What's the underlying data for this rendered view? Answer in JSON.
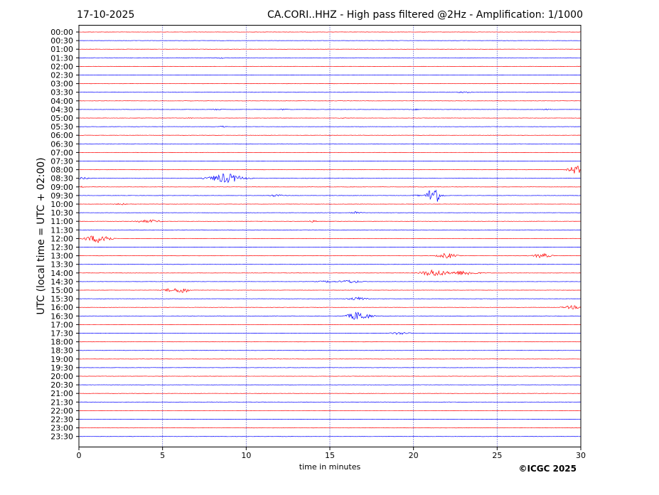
{
  "header": {
    "date": "17-10-2025",
    "title": "CA.CORI..HHZ - High pass filtered @2Hz - Amplification: 1/1000"
  },
  "footer": {
    "copyright": "©ICGC 2025"
  },
  "colors": {
    "red": "#ff0000",
    "blue": "#0000ff",
    "grid": "#0000aa"
  },
  "chart_data": {
    "type": "line",
    "xlabel": "time in minutes",
    "ylabel": "UTC (local time = UTC + 02:00)",
    "xlim": [
      0,
      30
    ],
    "x_ticks": [
      0,
      5,
      10,
      15,
      20,
      25,
      30
    ],
    "y_ticks": [
      "00:00",
      "00:30",
      "01:00",
      "01:30",
      "02:00",
      "02:30",
      "03:00",
      "03:30",
      "04:00",
      "04:30",
      "05:00",
      "05:30",
      "06:00",
      "06:30",
      "07:00",
      "07:30",
      "08:00",
      "08:30",
      "09:00",
      "09:30",
      "10:00",
      "10:30",
      "11:00",
      "11:30",
      "12:00",
      "12:30",
      "13:00",
      "13:30",
      "14:00",
      "14:30",
      "15:00",
      "15:30",
      "16:00",
      "16:30",
      "17:00",
      "17:30",
      "18:00",
      "18:30",
      "19:00",
      "19:30",
      "20:00",
      "20:30",
      "21:00",
      "21:30",
      "22:00",
      "22:30",
      "23:00",
      "23:30"
    ],
    "grid": "vertical dotted",
    "trace_colors": "alternating red (full hour) / blue (half hour)",
    "events": [
      {
        "row": "01:30",
        "minute": 8.5,
        "amplitude": 0.15,
        "duration": 0.6
      },
      {
        "row": "03:30",
        "minute": 23.0,
        "amplitude": 0.1,
        "duration": 1.5
      },
      {
        "row": "04:30",
        "minute": 8.3,
        "amplitude": 0.12,
        "duration": 0.6
      },
      {
        "row": "04:30",
        "minute": 12.2,
        "amplitude": 0.12,
        "duration": 0.6
      },
      {
        "row": "04:30",
        "minute": 20.1,
        "amplitude": 0.12,
        "duration": 0.6
      },
      {
        "row": "04:30",
        "minute": 28.0,
        "amplitude": 0.1,
        "duration": 0.6
      },
      {
        "row": "05:00",
        "minute": 6.6,
        "amplitude": 0.08,
        "duration": 0.5
      },
      {
        "row": "05:00",
        "minute": 15.8,
        "amplitude": 0.08,
        "duration": 0.5
      },
      {
        "row": "05:30",
        "minute": 8.6,
        "amplitude": 0.15,
        "duration": 0.4
      },
      {
        "row": "08:00",
        "minute": 29.7,
        "amplitude": 1.0,
        "duration": 0.8
      },
      {
        "row": "08:30",
        "minute": 0.2,
        "amplitude": 0.3,
        "duration": 0.8
      },
      {
        "row": "08:30",
        "minute": 8.8,
        "amplitude": 1.1,
        "duration": 1.8
      },
      {
        "row": "09:00",
        "minute": 0.2,
        "amplitude": 0.15,
        "duration": 0.3
      },
      {
        "row": "09:30",
        "minute": 11.8,
        "amplitude": 0.25,
        "duration": 0.8
      },
      {
        "row": "09:30",
        "minute": 20.2,
        "amplitude": 0.15,
        "duration": 0.4
      },
      {
        "row": "09:30",
        "minute": 21.2,
        "amplitude": 2.4,
        "duration": 0.7
      },
      {
        "row": "10:00",
        "minute": 2.5,
        "amplitude": 0.2,
        "duration": 0.6
      },
      {
        "row": "10:30",
        "minute": 16.5,
        "amplitude": 0.3,
        "duration": 0.6
      },
      {
        "row": "11:00",
        "minute": 3.8,
        "amplitude": 0.25,
        "duration": 1.2
      },
      {
        "row": "11:00",
        "minute": 4.5,
        "amplitude": 0.25,
        "duration": 0.8
      },
      {
        "row": "11:00",
        "minute": 14.0,
        "amplitude": 0.2,
        "duration": 0.5
      },
      {
        "row": "12:00",
        "minute": 1.0,
        "amplitude": 0.7,
        "duration": 1.4
      },
      {
        "row": "12:00",
        "minute": 1.5,
        "amplitude": 0.6,
        "duration": 0.8
      },
      {
        "row": "13:00",
        "minute": 22.0,
        "amplitude": 0.6,
        "duration": 1.0
      },
      {
        "row": "13:00",
        "minute": 27.7,
        "amplitude": 0.5,
        "duration": 1.0
      },
      {
        "row": "14:00",
        "minute": 21.2,
        "amplitude": 0.8,
        "duration": 1.4
      },
      {
        "row": "14:00",
        "minute": 23.0,
        "amplitude": 0.5,
        "duration": 1.6
      },
      {
        "row": "14:30",
        "minute": 14.8,
        "amplitude": 0.2,
        "duration": 1.0
      },
      {
        "row": "14:30",
        "minute": 16.2,
        "amplitude": 0.35,
        "duration": 1.2
      },
      {
        "row": "15:00",
        "minute": 5.5,
        "amplitude": 0.4,
        "duration": 0.8
      },
      {
        "row": "15:00",
        "minute": 6.2,
        "amplitude": 0.8,
        "duration": 0.6
      },
      {
        "row": "15:30",
        "minute": 16.5,
        "amplitude": 0.3,
        "duration": 0.8
      },
      {
        "row": "15:30",
        "minute": 17.0,
        "amplitude": 0.3,
        "duration": 0.6
      },
      {
        "row": "16:00",
        "minute": 29.5,
        "amplitude": 0.4,
        "duration": 1.0
      },
      {
        "row": "16:30",
        "minute": 16.5,
        "amplitude": 0.7,
        "duration": 0.9
      },
      {
        "row": "16:30",
        "minute": 17.0,
        "amplitude": 0.6,
        "duration": 1.0
      },
      {
        "row": "17:30",
        "minute": 19.2,
        "amplitude": 0.3,
        "duration": 1.0
      }
    ]
  }
}
